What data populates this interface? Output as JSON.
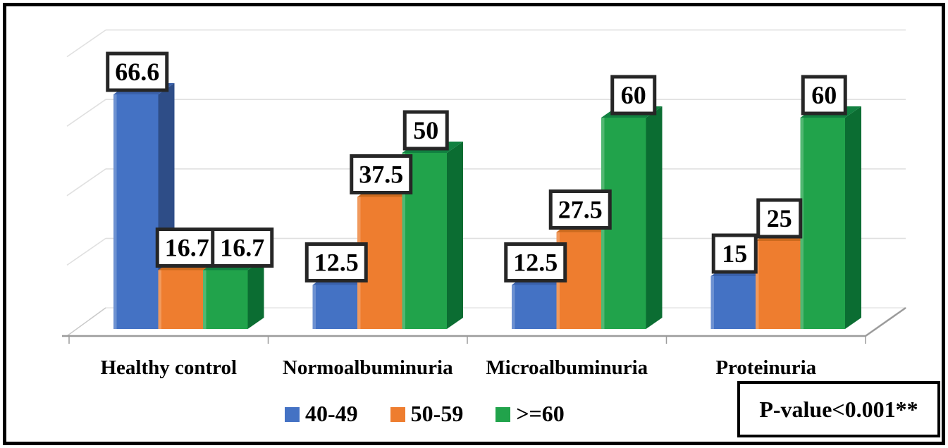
{
  "chart_data": {
    "type": "bar",
    "projection": "3d-clustered-column",
    "title": "",
    "categories": [
      "Healthy control",
      "Normoalbuminuria",
      "Microalbuminuria",
      "Proteinuria"
    ],
    "series": [
      {
        "name": "40-49",
        "color": "#4472C4",
        "side_color": "#2E4D87",
        "top_color": "#3A61AB",
        "values": [
          66.6,
          12.5,
          12.5,
          15
        ]
      },
      {
        "name": "50-59",
        "color": "#EE7D2F",
        "side_color": "#B55815",
        "top_color": "#CB6A1E",
        "values": [
          16.7,
          37.5,
          27.5,
          25
        ]
      },
      {
        "name": ">=60",
        "color": "#21A34B",
        "side_color": "#0B6D32",
        "top_color": "#118040",
        "values": [
          16.7,
          50,
          60,
          60
        ]
      }
    ],
    "show_data_labels": true,
    "data_label_style": {
      "box_fill": "#ffffff",
      "box_border": "#262626",
      "text_color": "#000000"
    },
    "ylim": [
      0,
      80
    ],
    "grid_step": 20,
    "y_axis_tick_labels_visible": false,
    "gridline_color": "#E0E0E0",
    "axis_line_color": "#9B9B9B",
    "legend": {
      "position": "bottom"
    },
    "annotation": "P-value<0.001**"
  }
}
